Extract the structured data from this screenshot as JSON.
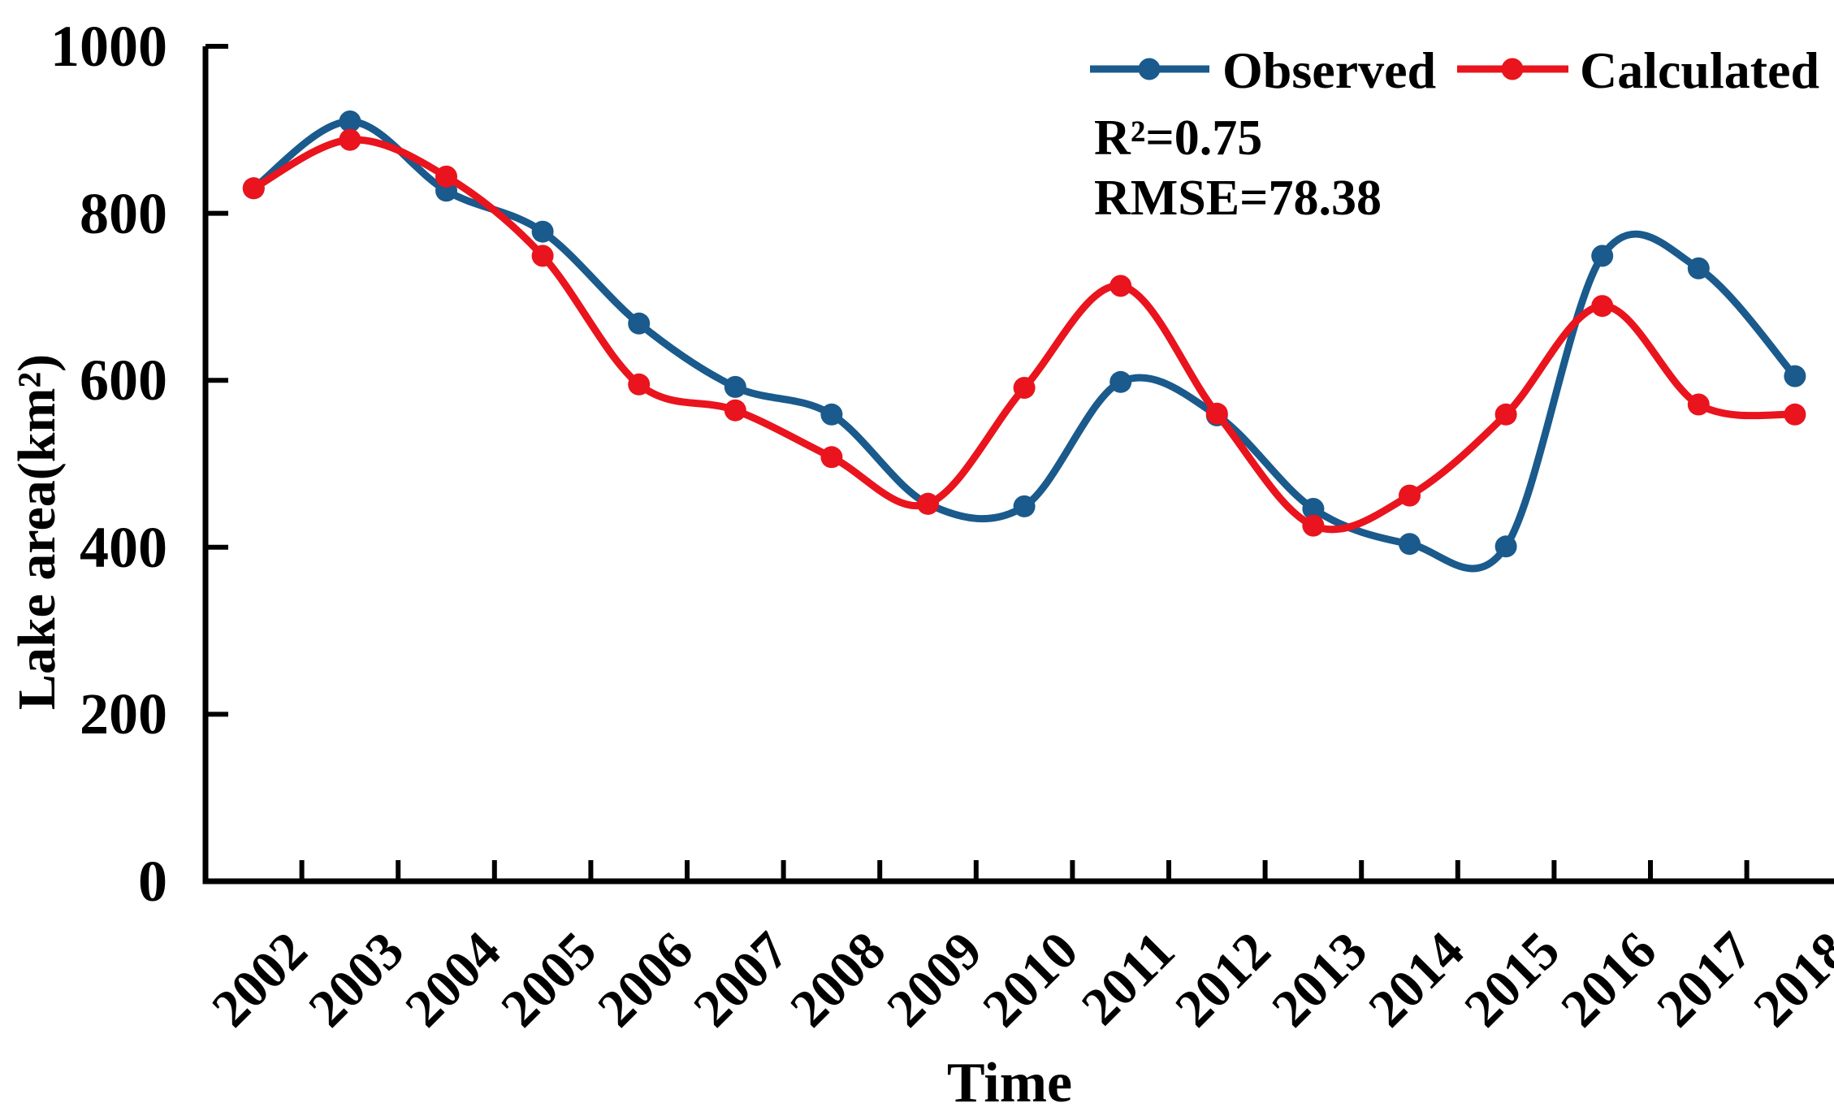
{
  "chart_data": {
    "type": "line",
    "smoothed": true,
    "marker": "circle",
    "grid": false,
    "categories": [
      "2002",
      "2003",
      "2004",
      "2005",
      "2006",
      "2007",
      "2008",
      "2009",
      "2010",
      "2011",
      "2012",
      "2013",
      "2014",
      "2015",
      "2016",
      "2017",
      "2018"
    ],
    "series": [
      {
        "name": "Observed",
        "color": "#1a5a8c",
        "values": [
          830,
          910,
          827,
          778,
          668,
          592,
          559,
          452,
          449,
          598,
          558,
          446,
          404,
          401,
          749,
          734,
          605
        ]
      },
      {
        "name": "Calculated",
        "color": "#e9141d",
        "values": [
          830,
          888,
          844,
          749,
          595,
          564,
          508,
          452,
          591,
          713,
          560,
          426,
          462,
          559,
          689,
          571,
          559
        ]
      }
    ],
    "xlabel": "Time",
    "ylabel": "Lake area(km²)",
    "ylim": [
      0,
      1000
    ],
    "yticks": [
      0,
      200,
      400,
      600,
      800,
      1000
    ],
    "legend_position": "top-right",
    "annotations": [
      "R²=0.75",
      "RMSE=78.38"
    ],
    "axis_color": "#000000"
  }
}
